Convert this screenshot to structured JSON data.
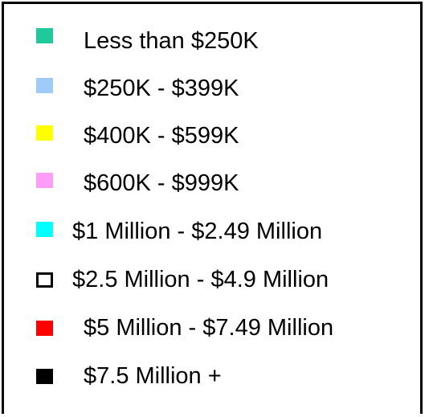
{
  "chart_data": {
    "type": "legend",
    "legend": [
      {
        "label": "Less than $250K",
        "color": "#1fc99a",
        "style": "filled"
      },
      {
        "label": "$250K - $399K",
        "color": "#9ecbf9",
        "style": "filled"
      },
      {
        "label": "$400K - $599K",
        "color": "#ffff00",
        "style": "filled"
      },
      {
        "label": "$600K - $999K",
        "color": "#ff9cf7",
        "style": "filled"
      },
      {
        "label": "$1 Million - $2.49 Million",
        "color": "#00ffff",
        "style": "filled"
      },
      {
        "label": "$2.5 Million - $4.9 Million",
        "color": "#ffffff",
        "style": "outlined"
      },
      {
        "label": "$5 Million - $7.49 Million",
        "color": "#ff0000",
        "style": "filled"
      },
      {
        "label": "$7.5 Million +",
        "color": "#000000",
        "style": "filled"
      }
    ]
  }
}
